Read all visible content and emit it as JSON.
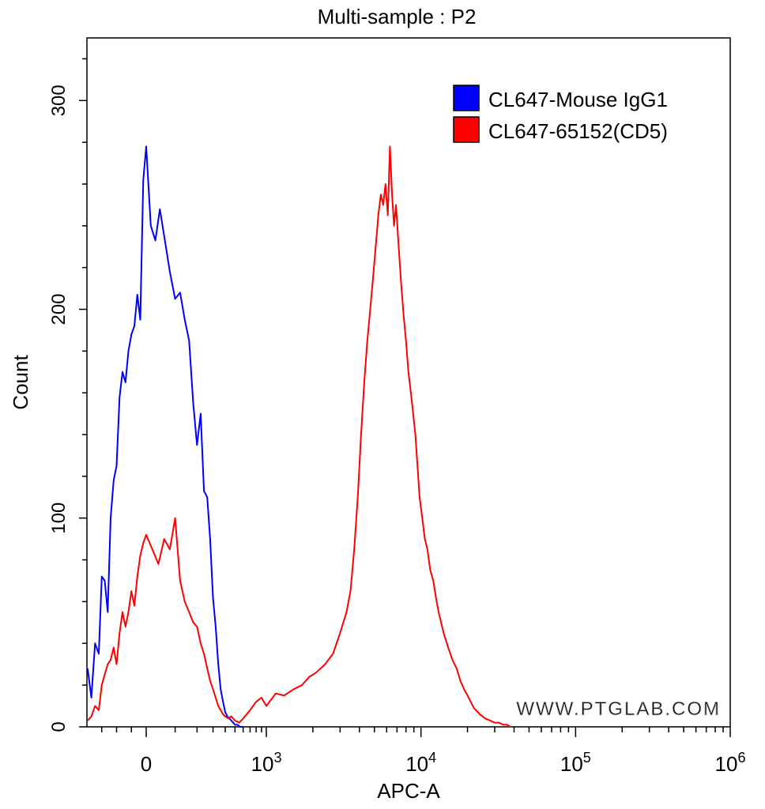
{
  "chart_data": {
    "type": "line",
    "title": "Multi-sample : P2",
    "xlabel": "APC-A",
    "ylabel": "Count",
    "xscale": "biexponential",
    "xlim": [
      -400,
      1000000
    ],
    "ylim": [
      0,
      330
    ],
    "x_tick_labels": [
      {
        "value": 0,
        "base": "0",
        "exp": ""
      },
      {
        "value": 1000,
        "base": "10",
        "exp": "3"
      },
      {
        "value": 10000,
        "base": "10",
        "exp": "4"
      },
      {
        "value": 100000,
        "base": "10",
        "exp": "5"
      },
      {
        "value": 1000000,
        "base": "10",
        "exp": "6"
      }
    ],
    "y_ticks": [
      0,
      100,
      200,
      300
    ],
    "legend_position": "top-right",
    "watermark": "WWW.PTGLAB.COM",
    "grid": false,
    "series": [
      {
        "name": "CL647-Mouse IgG1",
        "color": "#0000ff",
        "x": [
          -395,
          -370,
          -345,
          -320,
          -300,
          -280,
          -260,
          -240,
          -220,
          -200,
          -180,
          -160,
          -140,
          -120,
          -100,
          -80,
          -60,
          -40,
          -20,
          0,
          15,
          30,
          45,
          60,
          80,
          100,
          120,
          140,
          160,
          180,
          200,
          220,
          240,
          260,
          280,
          300,
          320,
          340,
          360,
          380,
          400,
          420,
          440,
          460,
          480,
          500,
          530,
          560,
          600
        ],
        "y": [
          28,
          14,
          40,
          35,
          72,
          70,
          55,
          100,
          118,
          125,
          158,
          170,
          165,
          180,
          188,
          192,
          207,
          195,
          262,
          278,
          240,
          233,
          248,
          235,
          218,
          205,
          208,
          195,
          185,
          155,
          135,
          150,
          113,
          110,
          90,
          62,
          48,
          30,
          18,
          12,
          7,
          5,
          4,
          3,
          2,
          1,
          1,
          0,
          0
        ]
      },
      {
        "name": "CL647-65152(CD5)",
        "color": "#ff0000",
        "x": [
          -395,
          -370,
          -345,
          -320,
          -300,
          -280,
          -260,
          -240,
          -220,
          -200,
          -180,
          -160,
          -140,
          -120,
          -100,
          -80,
          -60,
          -40,
          -20,
          0,
          20,
          40,
          60,
          80,
          100,
          120,
          140,
          160,
          180,
          200,
          220,
          240,
          260,
          280,
          300,
          320,
          340,
          360,
          380,
          400,
          430,
          460,
          500,
          550,
          600,
          700,
          800,
          900,
          1000,
          1150,
          1300,
          1500,
          1700,
          1900,
          2100,
          2400,
          2700,
          3000,
          3300,
          3500,
          3700,
          3900,
          4100,
          4300,
          4500,
          4700,
          4900,
          5100,
          5300,
          5500,
          5700,
          5900,
          6100,
          6300,
          6500,
          6700,
          6900,
          7100,
          7400,
          7700,
          8000,
          8300,
          8600,
          8900,
          9200,
          9500,
          9800,
          10200,
          10600,
          11000,
          11500,
          12000,
          12500,
          13000,
          13500,
          14000,
          15000,
          16000,
          17000,
          18000,
          19000,
          20000,
          21000,
          22000,
          24000,
          26000,
          28000,
          30000,
          32000,
          34000,
          36000,
          38000
        ],
        "y": [
          3,
          5,
          10,
          8,
          20,
          25,
          30,
          32,
          38,
          30,
          45,
          55,
          48,
          55,
          65,
          58,
          72,
          82,
          88,
          92,
          85,
          78,
          90,
          85,
          100,
          70,
          60,
          55,
          50,
          48,
          40,
          35,
          28,
          22,
          18,
          14,
          10,
          8,
          6,
          5,
          4,
          5,
          3,
          2,
          4,
          8,
          12,
          14,
          10,
          16,
          15,
          18,
          20,
          24,
          26,
          30,
          35,
          45,
          55,
          65,
          85,
          110,
          140,
          165,
          185,
          200,
          215,
          230,
          245,
          255,
          250,
          260,
          245,
          278,
          255,
          240,
          250,
          235,
          215,
          198,
          185,
          170,
          160,
          150,
          140,
          125,
          110,
          100,
          90,
          85,
          75,
          70,
          62,
          55,
          50,
          45,
          38,
          32,
          28,
          22,
          18,
          15,
          12,
          9,
          6,
          4,
          3,
          2,
          2,
          1,
          1,
          0
        ]
      }
    ]
  }
}
